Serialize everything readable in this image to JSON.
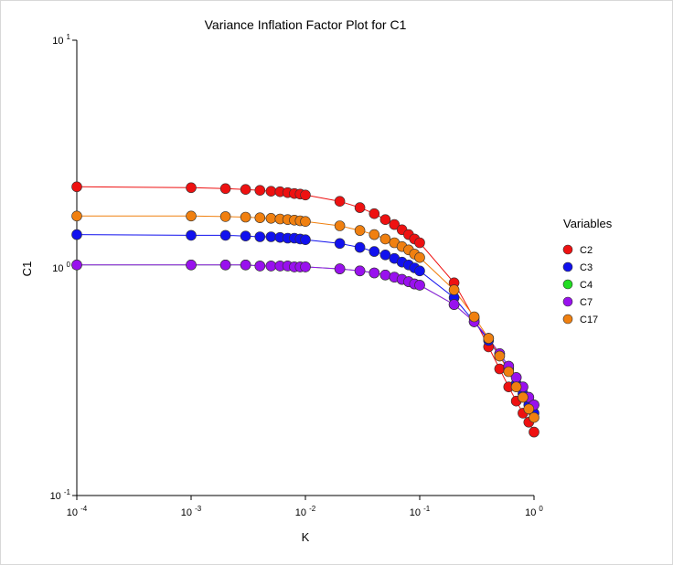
{
  "chart_data": {
    "type": "line",
    "title": "Variance Inflation Factor Plot for C1",
    "xlabel": "K",
    "ylabel": "C1",
    "xscale": "log",
    "yscale": "log",
    "xlim": [
      0.0001,
      1
    ],
    "ylim": [
      0.1,
      10
    ],
    "x_ticks": [
      {
        "base": "10",
        "exp": "-4"
      },
      {
        "base": "10",
        "exp": "-3"
      },
      {
        "base": "10",
        "exp": "-2"
      },
      {
        "base": "10",
        "exp": "-1"
      },
      {
        "base": "10",
        "exp": "0"
      }
    ],
    "y_ticks": [
      {
        "base": "10",
        "exp": "-1"
      },
      {
        "base": "10",
        "exp": "0"
      },
      {
        "base": "10",
        "exp": "1"
      }
    ],
    "grid": false,
    "legend": {
      "title": "Variables",
      "placement": "right"
    },
    "x": [
      0.0001,
      0.001,
      0.002,
      0.003,
      0.004,
      0.005,
      0.006,
      0.007,
      0.008,
      0.009,
      0.01,
      0.02,
      0.03,
      0.04,
      0.05,
      0.06,
      0.07,
      0.08,
      0.09,
      0.1,
      0.2,
      0.3,
      0.4,
      0.5,
      0.6,
      0.7,
      0.8,
      0.9,
      1.0
    ],
    "series": [
      {
        "name": "C2",
        "color": "#ee1111",
        "values": [
          2.27,
          2.25,
          2.23,
          2.21,
          2.19,
          2.17,
          2.16,
          2.14,
          2.12,
          2.11,
          2.09,
          1.96,
          1.84,
          1.73,
          1.63,
          1.55,
          1.47,
          1.4,
          1.34,
          1.29,
          0.86,
          0.6,
          0.45,
          0.36,
          0.3,
          0.26,
          0.23,
          0.21,
          0.19
        ]
      },
      {
        "name": "C3",
        "color": "#1111ee",
        "values": [
          1.4,
          1.39,
          1.39,
          1.38,
          1.37,
          1.37,
          1.36,
          1.35,
          1.35,
          1.34,
          1.33,
          1.28,
          1.23,
          1.18,
          1.14,
          1.1,
          1.06,
          1.03,
          1.0,
          0.97,
          0.74,
          0.58,
          0.48,
          0.41,
          0.36,
          0.31,
          0.28,
          0.25,
          0.23
        ]
      },
      {
        "name": "C4",
        "color": "#22dd22",
        "values": [
          1.03,
          1.03,
          1.03,
          1.03,
          1.02,
          1.02,
          1.02,
          1.02,
          1.01,
          1.01,
          1.01,
          0.99,
          0.97,
          0.95,
          0.93,
          0.91,
          0.89,
          0.87,
          0.85,
          0.84,
          0.69,
          0.58,
          0.49,
          0.42,
          0.37,
          0.33,
          0.3,
          0.27,
          0.25
        ]
      },
      {
        "name": "C7",
        "color": "#9911ee",
        "values": [
          1.03,
          1.03,
          1.03,
          1.03,
          1.02,
          1.02,
          1.02,
          1.02,
          1.01,
          1.01,
          1.01,
          0.99,
          0.97,
          0.95,
          0.93,
          0.91,
          0.89,
          0.87,
          0.85,
          0.84,
          0.69,
          0.58,
          0.49,
          0.42,
          0.37,
          0.33,
          0.3,
          0.27,
          0.25
        ]
      },
      {
        "name": "C17",
        "color": "#f08010",
        "values": [
          1.69,
          1.69,
          1.68,
          1.67,
          1.66,
          1.65,
          1.64,
          1.63,
          1.62,
          1.61,
          1.6,
          1.53,
          1.46,
          1.4,
          1.34,
          1.29,
          1.24,
          1.2,
          1.15,
          1.11,
          0.8,
          0.61,
          0.49,
          0.41,
          0.35,
          0.3,
          0.27,
          0.24,
          0.22
        ]
      }
    ]
  }
}
